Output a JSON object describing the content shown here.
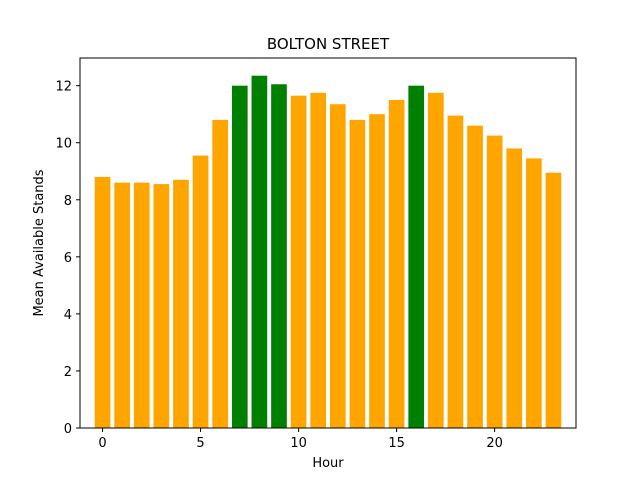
{
  "chart_data": {
    "type": "bar",
    "title": "BOLTON STREET",
    "xlabel": "Hour",
    "ylabel": "Mean Available Stands",
    "x": [
      0,
      1,
      2,
      3,
      4,
      5,
      6,
      7,
      8,
      9,
      10,
      11,
      12,
      13,
      14,
      15,
      16,
      17,
      18,
      19,
      20,
      21,
      22,
      23
    ],
    "values": [
      8.8,
      8.6,
      8.6,
      8.55,
      8.7,
      9.55,
      10.8,
      12.0,
      12.35,
      12.05,
      11.65,
      11.75,
      11.35,
      10.8,
      11.0,
      11.5,
      12.0,
      11.75,
      10.95,
      10.6,
      10.25,
      9.8,
      9.45,
      8.95
    ],
    "highlight_hours": [
      7,
      8,
      9,
      16
    ],
    "colors": {
      "default": "#FFA500",
      "highlight": "#008000"
    },
    "xlim": [
      -1.15,
      24.15
    ],
    "ylim": [
      0,
      12.97
    ],
    "xticks": [
      0,
      5,
      10,
      15,
      20
    ],
    "yticks": [
      0,
      2,
      4,
      6,
      8,
      10,
      12
    ],
    "grid": false,
    "legend": "none"
  }
}
